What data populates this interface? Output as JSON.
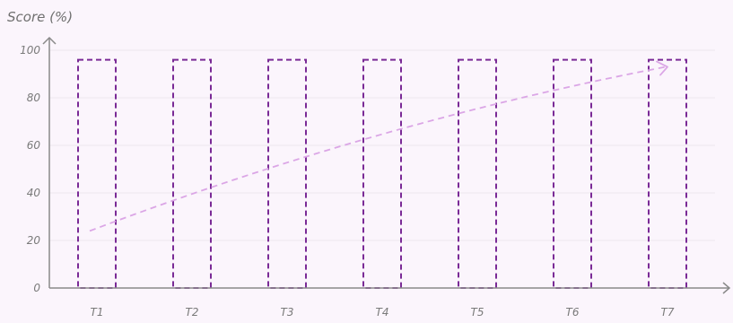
{
  "chart_data": {
    "type": "bar",
    "title": "",
    "xlabel": "",
    "ylabel": "Score (%)",
    "categories": [
      "T1",
      "T2",
      "T3",
      "T4",
      "T5",
      "T6",
      "T7"
    ],
    "values": [
      96,
      96,
      96,
      96,
      96,
      96,
      96
    ],
    "ylim": [
      0,
      100
    ],
    "yticks": [
      0,
      20,
      40,
      60,
      80,
      100
    ],
    "grid": true,
    "trend_arrow": {
      "from": [
        "T1",
        24
      ],
      "to": [
        "T7",
        93
      ]
    },
    "colors": {
      "background": "#fbf5fc",
      "bar_stroke": "#7a2a96",
      "trend": "#dba6e6",
      "axis": "#8a8a8a",
      "grid": "#ece6ee",
      "text": "#7a7a7a"
    }
  }
}
